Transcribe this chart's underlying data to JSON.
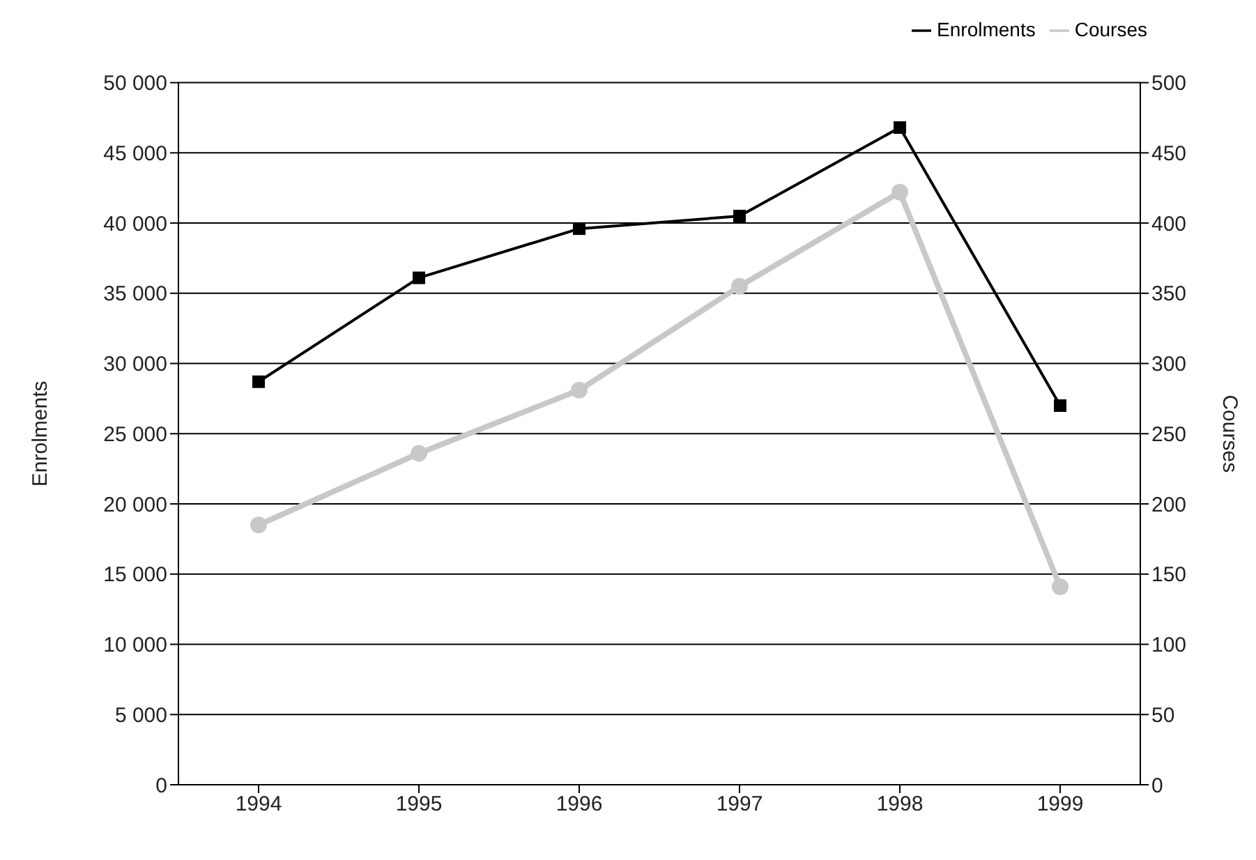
{
  "chart_data": {
    "type": "line",
    "categories": [
      "1994",
      "1995",
      "1996",
      "1997",
      "1998",
      "1999"
    ],
    "series": [
      {
        "name": "Enrolments",
        "color": "#000000",
        "marker": "square",
        "values": [
          28700,
          36100,
          39600,
          40500,
          46800,
          27000
        ]
      },
      {
        "name": "Courses",
        "color": "#c8c8c8",
        "marker": "circle",
        "axis": "y2",
        "values": [
          185,
          236,
          281,
          355,
          422,
          141
        ]
      }
    ],
    "ylabel": "Enrolments",
    "y2label": "Courses",
    "ylim": [
      0,
      50000
    ],
    "yticks": [
      {
        "value": 0,
        "label": "0"
      },
      {
        "value": 5000,
        "label": "5 000"
      },
      {
        "value": 10000,
        "label": "10 000"
      },
      {
        "value": 15000,
        "label": "15 000"
      },
      {
        "value": 20000,
        "label": "20 000"
      },
      {
        "value": 25000,
        "label": "25 000"
      },
      {
        "value": 30000,
        "label": "30 000"
      },
      {
        "value": 35000,
        "label": "35 000"
      },
      {
        "value": 40000,
        "label": "40 000"
      },
      {
        "value": 45000,
        "label": "45 000"
      },
      {
        "value": 50000,
        "label": "50 000"
      }
    ],
    "y2lim": [
      0,
      500
    ],
    "y2ticks": [
      0,
      50,
      100,
      150,
      200,
      250,
      300,
      350,
      400,
      450,
      500
    ],
    "grid": "y",
    "legend": "top right"
  }
}
